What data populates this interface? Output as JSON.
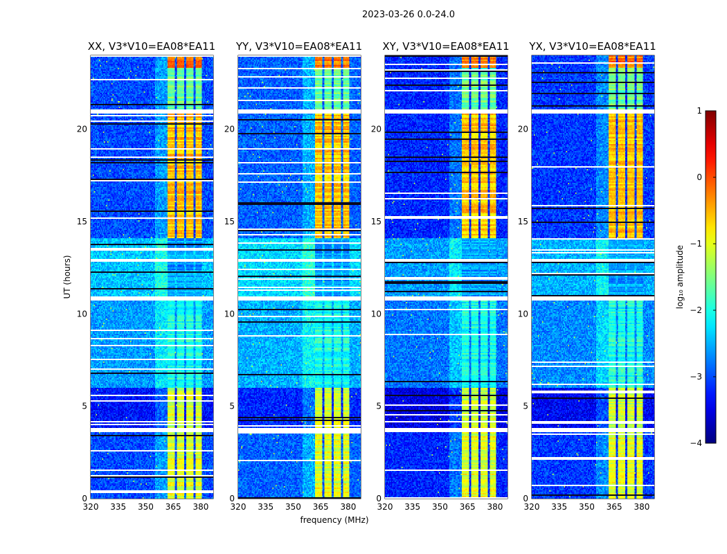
{
  "chart_data": {
    "type": "heatmap",
    "suptitle": "2023-03-26 0.0-24.0",
    "panels": [
      {
        "title": "XX, V3*V10=EA08*EA11",
        "bg": -3.0
      },
      {
        "title": "YY, V3*V10=EA08*EA11",
        "bg": -2.9
      },
      {
        "title": "XY, V3*V10=EA08*EA11",
        "bg": -3.2
      },
      {
        "title": "YX, V3*V10=EA08*EA11",
        "bg": -3.1
      }
    ],
    "xlabel": "frequency (MHz)",
    "ylabel": "UT (hours)",
    "xlim": [
      320,
      386.8
    ],
    "ylim": [
      0,
      24
    ],
    "xticks": [
      "320",
      "335",
      "350",
      "365",
      "380"
    ],
    "yticks": [
      "0",
      "5",
      "10",
      "15",
      "20"
    ],
    "rfi_bands_mhz": [
      [
        362,
        366
      ],
      [
        367,
        371
      ],
      [
        372,
        376
      ],
      [
        377,
        380.5
      ]
    ],
    "time_segments": [
      {
        "hours": [
          0,
          3.6
        ],
        "band_log10": -1.0,
        "bg_offset": 0.0
      },
      {
        "hours": [
          3.8,
          6.0
        ],
        "band_log10": -1.1,
        "bg_offset": -0.3
      },
      {
        "hours": [
          6.0,
          10.7
        ],
        "band_log10": -2.0,
        "bg_offset": 0.4
      },
      {
        "hours": [
          10.95,
          14.1
        ],
        "band_log10": -2.6,
        "bg_offset": 0.6
      },
      {
        "hours": [
          14.1,
          20.85
        ],
        "band_log10": -0.6,
        "bg_offset": 0.0
      },
      {
        "hours": [
          21.1,
          23.3
        ],
        "band_log10": -1.6,
        "bg_offset": 0.0
      },
      {
        "hours": [
          23.3,
          24
        ],
        "band_log10": -0.2,
        "bg_offset": 0.0
      }
    ],
    "flagged_hours": [
      [
        3.6,
        3.8
      ],
      [
        10.7,
        10.95
      ],
      [
        12.8,
        13.0
      ],
      [
        20.85,
        21.1
      ]
    ],
    "colorbar": {
      "label": "log₁₀ amplitude",
      "ticks": [
        "1",
        "0",
        "−1",
        "−2",
        "−3",
        "−4"
      ],
      "range": [
        -4,
        1
      ],
      "colormap": "jet"
    }
  }
}
